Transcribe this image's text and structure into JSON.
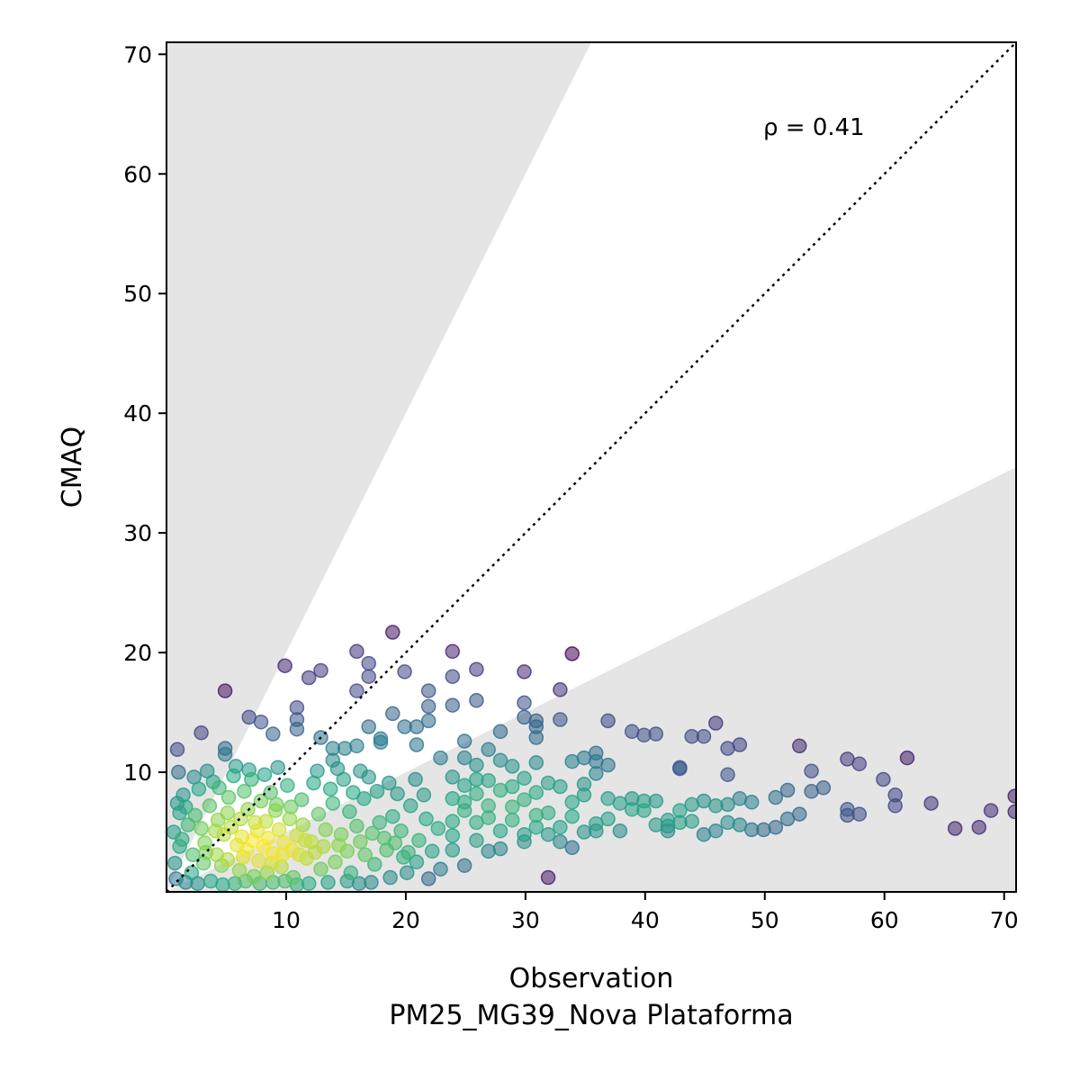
{
  "chart_data": {
    "type": "scatter",
    "xlabel": "Observation",
    "xlabel_sub": "PM25_MG39_Nova Plataforma",
    "ylabel": "CMAQ",
    "annotation": "ρ = 0.41",
    "xlim": [
      0,
      71
    ],
    "ylim": [
      0,
      71
    ],
    "xticks": [
      10,
      20,
      30,
      40,
      50,
      60,
      70
    ],
    "yticks": [
      10,
      20,
      30,
      40,
      50,
      60,
      70
    ],
    "xtick_labels": [
      "10",
      "20",
      "30",
      "40",
      "50",
      "60",
      "70"
    ],
    "ytick_labels": [
      "10",
      "20",
      "30",
      "40",
      "50",
      "60",
      "70"
    ],
    "reference_line": {
      "style": "dotted",
      "slope": 1,
      "color": "#000000"
    },
    "shaded_regions_color": "#e5e5e5",
    "shaded_regions_factor": 2,
    "grid": false,
    "colormap": "viridis",
    "marker_alpha": 0.55,
    "sparse_points": [
      [
        0.9,
        11.9
      ],
      [
        1,
        10
      ],
      [
        2.9,
        13.3
      ],
      [
        4.9,
        16.8
      ],
      [
        4.9,
        12
      ],
      [
        4.9,
        11.5
      ],
      [
        5.8,
        10.5
      ],
      [
        6.9,
        14.6
      ],
      [
        7.9,
        14.2
      ],
      [
        8.9,
        13.2
      ],
      [
        9.9,
        18.9
      ],
      [
        10.9,
        15.4
      ],
      [
        10.9,
        14.4
      ],
      [
        10.9,
        13.6
      ],
      [
        11.9,
        17.9
      ],
      [
        12.9,
        18.5
      ],
      [
        12.9,
        12.9
      ],
      [
        13.9,
        12
      ],
      [
        13.9,
        11
      ],
      [
        14.9,
        12
      ],
      [
        15.9,
        20.1
      ],
      [
        15.9,
        16.8
      ],
      [
        15.9,
        12.2
      ],
      [
        16.9,
        19.1
      ],
      [
        16.9,
        18
      ],
      [
        16.9,
        13.8
      ],
      [
        17.9,
        12.8
      ],
      [
        17.9,
        12.5
      ],
      [
        18.9,
        21.7
      ],
      [
        18.9,
        14.9
      ],
      [
        19.9,
        18.4
      ],
      [
        19.9,
        13.8
      ],
      [
        20.9,
        13.8
      ],
      [
        20.9,
        12.3
      ],
      [
        21.9,
        16.8
      ],
      [
        21.9,
        15.5
      ],
      [
        21.9,
        14.3
      ],
      [
        22.9,
        11.2
      ],
      [
        23.9,
        20.1
      ],
      [
        23.9,
        18
      ],
      [
        23.9,
        15.6
      ],
      [
        24.9,
        12.6
      ],
      [
        24.9,
        11.2
      ],
      [
        25.9,
        18.6
      ],
      [
        25.9,
        16
      ],
      [
        25.9,
        10.6
      ],
      [
        26.9,
        11.9
      ],
      [
        27.9,
        13.4
      ],
      [
        27.9,
        11
      ],
      [
        28.9,
        10.5
      ],
      [
        29.9,
        18.4
      ],
      [
        29.9,
        15.8
      ],
      [
        29.9,
        14.6
      ],
      [
        30.9,
        14.3
      ],
      [
        30.9,
        13.8
      ],
      [
        30.9,
        12.9
      ],
      [
        30.9,
        10.8
      ],
      [
        32.9,
        16.9
      ],
      [
        32.9,
        14.4
      ],
      [
        33.9,
        19.9
      ],
      [
        33.9,
        10.9
      ],
      [
        34.9,
        11.2
      ],
      [
        35.9,
        11.6
      ],
      [
        35.9,
        10.9
      ],
      [
        36.9,
        14.3
      ],
      [
        36.9,
        10.6
      ],
      [
        38.9,
        13.4
      ],
      [
        39.9,
        13.1
      ],
      [
        40.9,
        13.2
      ],
      [
        42.9,
        10.3
      ],
      [
        43.9,
        13
      ],
      [
        44.9,
        13
      ],
      [
        45.9,
        14.1
      ],
      [
        46.9,
        12
      ],
      [
        46.9,
        9.8
      ],
      [
        47.9,
        12.3
      ],
      [
        52.9,
        12.2
      ],
      [
        53.9,
        10.1
      ],
      [
        56.9,
        11.1
      ],
      [
        57.9,
        10.7
      ],
      [
        59.9,
        9.4
      ],
      [
        60.9,
        8.1
      ],
      [
        61.9,
        11.2
      ],
      [
        63.9,
        7.4
      ],
      [
        65.9,
        5.3
      ],
      [
        67.9,
        5.4
      ],
      [
        68.9,
        6.8
      ],
      [
        70.9,
        8
      ],
      [
        70.9,
        6.7
      ],
      [
        60.9,
        7.2
      ],
      [
        57.9,
        6.5
      ],
      [
        56.9,
        6.9
      ],
      [
        56.9,
        6.4
      ],
      [
        54.9,
        8.7
      ],
      [
        53.9,
        8.4
      ],
      [
        52.9,
        6.5
      ],
      [
        51.9,
        8.5
      ],
      [
        51.9,
        6.1
      ],
      [
        50.9,
        7.9
      ],
      [
        50.9,
        5.4
      ],
      [
        49.9,
        5.2
      ],
      [
        48.9,
        7.5
      ],
      [
        48.9,
        5.2
      ],
      [
        47.9,
        7.8
      ],
      [
        47.9,
        5.6
      ],
      [
        46.9,
        7.3
      ],
      [
        46.9,
        5.8
      ],
      [
        45.9,
        7.2
      ],
      [
        45.9,
        5.1
      ],
      [
        44.9,
        7.6
      ],
      [
        44.9,
        4.8
      ],
      [
        43.9,
        7.3
      ],
      [
        42.9,
        6.8
      ],
      [
        42.9,
        5.8
      ],
      [
        41.9,
        6
      ],
      [
        41.9,
        5.1
      ],
      [
        40.9,
        7.6
      ],
      [
        40.9,
        5.6
      ],
      [
        39.9,
        7.6
      ],
      [
        39.9,
        6.8
      ],
      [
        38.9,
        7.8
      ],
      [
        38.9,
        6.9
      ],
      [
        37.9,
        7.4
      ],
      [
        37.9,
        5.1
      ],
      [
        36.9,
        7.8
      ],
      [
        36.9,
        6.1
      ],
      [
        35.9,
        9.9
      ],
      [
        35.9,
        5.7
      ],
      [
        35.9,
        5.1
      ],
      [
        34.9,
        9
      ],
      [
        34.9,
        8.1
      ],
      [
        34.9,
        5
      ],
      [
        33.9,
        7.5
      ],
      [
        33.9,
        3.7
      ],
      [
        32.9,
        8.8
      ],
      [
        32.9,
        5.4
      ],
      [
        32.9,
        4.2
      ],
      [
        31.9,
        9.1
      ],
      [
        31.9,
        6.6
      ],
      [
        31.9,
        4.8
      ],
      [
        30.9,
        8.3
      ],
      [
        30.9,
        6.4
      ],
      [
        30.9,
        5.4
      ],
      [
        29.9,
        9.5
      ],
      [
        29.9,
        7.7
      ],
      [
        29.9,
        4.8
      ],
      [
        29.9,
        4.2
      ],
      [
        28.9,
        8.8
      ],
      [
        28.9,
        7.1
      ],
      [
        28.9,
        6
      ],
      [
        27.9,
        8.5
      ],
      [
        27.9,
        5.1
      ],
      [
        27.9,
        3.6
      ],
      [
        26.9,
        9.3
      ],
      [
        26.9,
        7.2
      ],
      [
        26.9,
        6.2
      ],
      [
        26.9,
        3.4
      ],
      [
        25.9,
        9.4
      ],
      [
        25.9,
        8.2
      ],
      [
        25.9,
        5.8
      ],
      [
        25.9,
        4.3
      ],
      [
        24.9,
        8.9
      ],
      [
        24.9,
        7.5
      ],
      [
        24.9,
        6.8
      ],
      [
        24.9,
        2.2
      ],
      [
        23.9,
        9.6
      ],
      [
        23.9,
        7.8
      ],
      [
        23.9,
        5.9
      ],
      [
        23.9,
        4.7
      ],
      [
        23.9,
        3.5
      ],
      [
        31.9,
        1.2
      ],
      [
        42.9,
        10.4
      ],
      [
        43.9,
        5.9
      ],
      [
        41.9,
        5.5
      ],
      [
        33.9,
        6.3
      ]
    ],
    "dense_points": [
      [
        1.1,
        3.8
      ],
      [
        1.8,
        5.6
      ],
      [
        2.4,
        6.4
      ],
      [
        3.2,
        4.1
      ],
      [
        3.6,
        7.2
      ],
      [
        4.3,
        6
      ],
      [
        4.8,
        4.8
      ],
      [
        5.4,
        5.4
      ],
      [
        5.9,
        3.9
      ],
      [
        6.3,
        4.6
      ],
      [
        6.7,
        3.5
      ],
      [
        7.2,
        4.3
      ],
      [
        7.6,
        5.1
      ],
      [
        8.1,
        3.8
      ],
      [
        8.5,
        4.5
      ],
      [
        8.9,
        3.2
      ],
      [
        9.4,
        5.2
      ],
      [
        9.8,
        4.1
      ],
      [
        10.3,
        6.1
      ],
      [
        10.9,
        4.7
      ],
      [
        11.4,
        5.6
      ],
      [
        12.1,
        4.2
      ],
      [
        12.7,
        6.5
      ],
      [
        13.3,
        5.2
      ],
      [
        13.9,
        7.4
      ],
      [
        14.6,
        4.8
      ],
      [
        15.3,
        6.7
      ],
      [
        15.9,
        5.5
      ],
      [
        16.5,
        7.8
      ],
      [
        17.2,
        4.9
      ],
      [
        1.4,
        8.1
      ],
      [
        2.7,
        8.6
      ],
      [
        3.9,
        9.2
      ],
      [
        4.6,
        2.2
      ],
      [
        5.1,
        2.7
      ],
      [
        6.1,
        1.8
      ],
      [
        7.3,
        1.3
      ],
      [
        8.4,
        1.6
      ],
      [
        9.6,
        2.1
      ],
      [
        10.6,
        1.2
      ],
      [
        11.7,
        2.8
      ],
      [
        12.9,
        1.9
      ],
      [
        14.1,
        2.5
      ],
      [
        15.4,
        1.6
      ],
      [
        16.6,
        3.1
      ],
      [
        17.4,
        2.3
      ],
      [
        18.2,
        4.5
      ],
      [
        18.9,
        6.3
      ],
      [
        19.6,
        5.1
      ],
      [
        20.4,
        7.2
      ],
      [
        21.1,
        4.3
      ],
      [
        21.7,
        6.1
      ],
      [
        22.2,
        3.4
      ],
      [
        2.1,
        1.6
      ],
      [
        3.1,
        2.4
      ],
      [
        0.6,
        5
      ],
      [
        0.7,
        2.4
      ],
      [
        1.6,
        7.1
      ],
      [
        2.9,
        5.3
      ],
      [
        4.2,
        3.1
      ],
      [
        6.8,
        6.9
      ],
      [
        7.9,
        7.6
      ],
      [
        8.7,
        8.3
      ],
      [
        9.1,
        6.8
      ],
      [
        10.1,
        8.9
      ],
      [
        11.3,
        7.7
      ],
      [
        12.3,
        9.1
      ],
      [
        13.7,
        8.6
      ],
      [
        14.8,
        9.4
      ],
      [
        15.6,
        8.3
      ],
      [
        16.9,
        9.6
      ],
      [
        17.6,
        8.4
      ],
      [
        18.6,
        9.1
      ],
      [
        19.3,
        8.2
      ],
      [
        20.8,
        9.4
      ],
      [
        21.5,
        8.1
      ],
      [
        5.6,
        9.7
      ],
      [
        6.5,
        8.4
      ],
      [
        7.1,
        9.4
      ],
      [
        8.2,
        9.8
      ],
      [
        3.4,
        10.1
      ],
      [
        6.9,
        10.2
      ],
      [
        9.3,
        10.4
      ],
      [
        12.6,
        10.1
      ],
      [
        14.3,
        10.3
      ],
      [
        16.2,
        10.1
      ],
      [
        2.3,
        9.6
      ],
      [
        1.1,
        6.6
      ],
      [
        0.8,
        1.1
      ],
      [
        22.7,
        5.3
      ],
      [
        22.9,
        1.9
      ],
      [
        21.9,
        1.1
      ],
      [
        20.1,
        1.6
      ],
      [
        19.8,
        2.9
      ],
      [
        18.7,
        1.2
      ],
      [
        17.1,
        0.8
      ],
      [
        16.1,
        0.7
      ],
      [
        15.1,
        0.9
      ],
      [
        13.5,
        0.8
      ],
      [
        11.9,
        0.7
      ],
      [
        10.9,
        0.6
      ],
      [
        9.9,
        0.9
      ],
      [
        8.9,
        0.8
      ],
      [
        7.8,
        0.7
      ],
      [
        6.6,
        0.9
      ],
      [
        5.7,
        0.7
      ],
      [
        4.7,
        0.6
      ],
      [
        3.7,
        0.9
      ],
      [
        2.6,
        0.7
      ],
      [
        1.6,
        0.8
      ],
      [
        4.4,
        8.7
      ],
      [
        5.2,
        7.9
      ],
      [
        6.2,
        6.1
      ],
      [
        7.4,
        5.8
      ],
      [
        8.3,
        5.9
      ],
      [
        9.2,
        7.3
      ],
      [
        10.4,
        7.1
      ],
      [
        11.1,
        3.1
      ],
      [
        12.4,
        3.3
      ],
      [
        13.1,
        3.8
      ],
      [
        14.4,
        3.9
      ],
      [
        15.1,
        3.4
      ],
      [
        16.2,
        4.2
      ],
      [
        17.8,
        5.8
      ],
      [
        18.4,
        3.5
      ],
      [
        19.1,
        4.1
      ],
      [
        20.2,
        3.3
      ],
      [
        20.9,
        2.5
      ],
      [
        3.3,
        3.3
      ],
      [
        2.2,
        3.1
      ],
      [
        1.3,
        4.4
      ],
      [
        0.9,
        7.4
      ],
      [
        5.1,
        6.6
      ],
      [
        4.1,
        5.1
      ],
      [
        6.4,
        2.9
      ],
      [
        7.7,
        2.6
      ],
      [
        8.8,
        2.4
      ],
      [
        9.7,
        3.1
      ],
      [
        10.5,
        3.5
      ],
      [
        11.6,
        4.3
      ]
    ]
  }
}
